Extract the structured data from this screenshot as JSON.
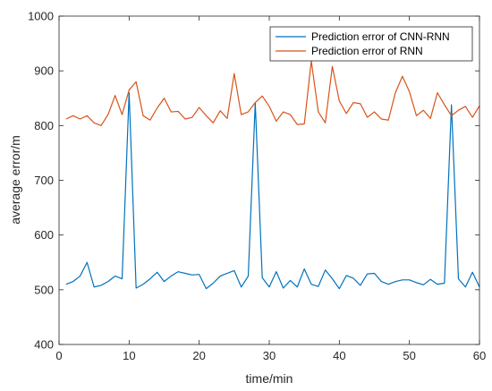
{
  "chart_data": {
    "type": "line",
    "title": "",
    "xlabel": "time/min",
    "ylabel": "average error/m",
    "xlim": [
      0,
      60
    ],
    "ylim": [
      400,
      1000
    ],
    "xticks": [
      0,
      10,
      20,
      30,
      40,
      50,
      60
    ],
    "yticks": [
      400,
      500,
      600,
      700,
      800,
      900,
      1000
    ],
    "xtick_labels": [
      "0",
      "10",
      "20",
      "30",
      "40",
      "50",
      "60"
    ],
    "ytick_labels": [
      "400",
      "500",
      "600",
      "700",
      "800",
      "900",
      "1000"
    ],
    "grid": false,
    "legend_position": "top-right",
    "x": [
      1,
      2,
      3,
      4,
      5,
      6,
      7,
      8,
      9,
      10,
      11,
      12,
      13,
      14,
      15,
      16,
      17,
      18,
      19,
      20,
      21,
      22,
      23,
      24,
      25,
      26,
      27,
      28,
      29,
      30,
      31,
      32,
      33,
      34,
      35,
      36,
      37,
      38,
      39,
      40,
      41,
      42,
      43,
      44,
      45,
      46,
      47,
      48,
      49,
      50,
      51,
      52,
      53,
      54,
      55,
      56,
      57,
      58,
      59,
      60
    ],
    "series": [
      {
        "name": "Prediction error of CNN-RNN",
        "color": "#0072BD",
        "values": [
          510,
          515,
          525,
          550,
          505,
          508,
          515,
          525,
          520,
          860,
          503,
          510,
          520,
          532,
          515,
          525,
          533,
          530,
          527,
          528,
          502,
          512,
          525,
          530,
          535,
          505,
          525,
          842,
          522,
          505,
          533,
          503,
          517,
          505,
          538,
          510,
          506,
          536,
          520,
          502,
          526,
          521,
          508,
          529,
          530,
          515,
          510,
          515,
          518,
          518,
          513,
          509,
          519,
          510,
          512,
          838,
          520,
          505,
          532,
          505
        ]
      },
      {
        "name": "Prediction error of RNN",
        "color": "#D95319",
        "values": [
          812,
          818,
          812,
          818,
          805,
          800,
          820,
          855,
          820,
          865,
          880,
          818,
          810,
          832,
          850,
          825,
          826,
          812,
          815,
          833,
          818,
          805,
          827,
          813,
          895,
          820,
          825,
          842,
          854,
          835,
          808,
          825,
          820,
          802,
          803,
          918,
          825,
          805,
          908,
          845,
          822,
          842,
          840,
          815,
          825,
          812,
          810,
          860,
          890,
          862,
          818,
          828,
          813,
          860,
          838,
          818,
          828,
          835,
          815,
          836
        ]
      }
    ]
  }
}
